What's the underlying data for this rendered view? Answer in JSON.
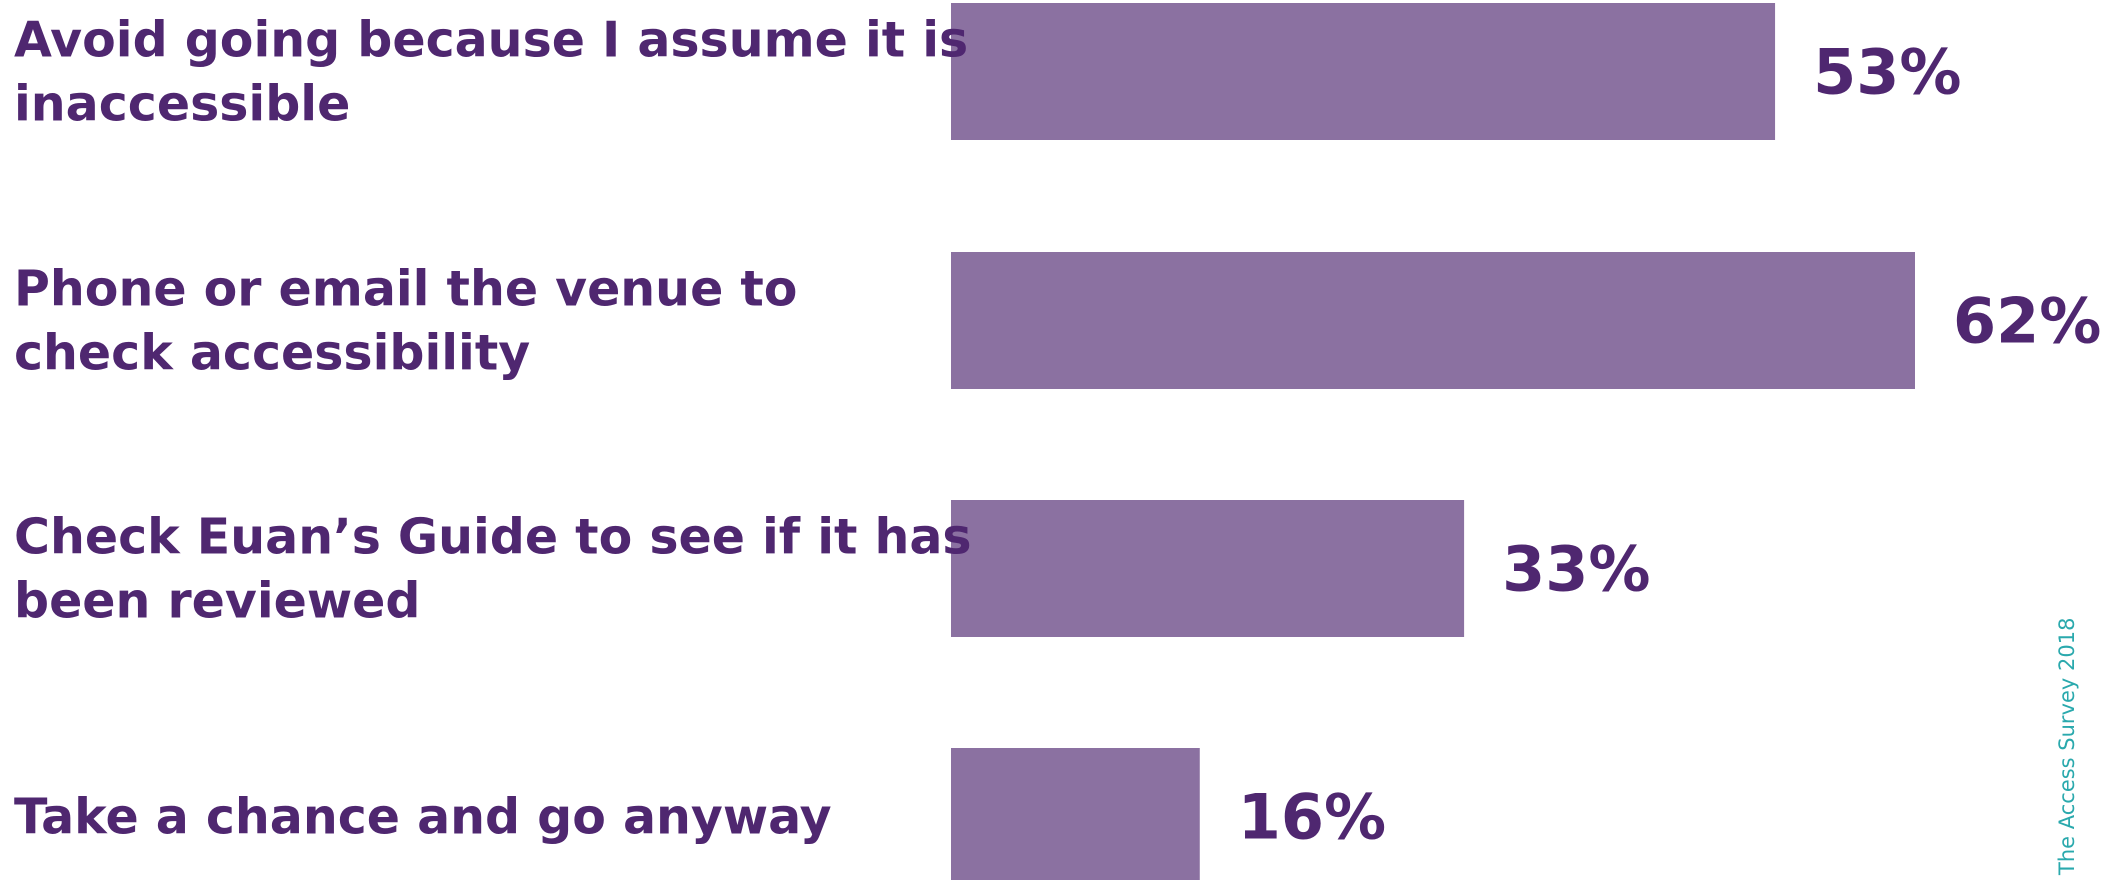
{
  "chart_data": {
    "type": "bar",
    "orientation": "horizontal",
    "categories": [
      [
        "Avoid going because I assume it is",
        "inaccessible"
      ],
      [
        "Phone or email the venue to",
        "check accessibility"
      ],
      [
        "Check Euan’s Guide to see if it has",
        "been reviewed"
      ],
      [
        "Take a chance and go anyway"
      ]
    ],
    "values": [
      53,
      62,
      33,
      16
    ],
    "value_labels": [
      "53%",
      "62%",
      "33%",
      "16%"
    ],
    "unit": "%",
    "xlim": [
      0,
      62
    ],
    "bar_color": "#8b71a1",
    "label_color": "#4f2770"
  },
  "source_note": "The Access Survey 2018"
}
